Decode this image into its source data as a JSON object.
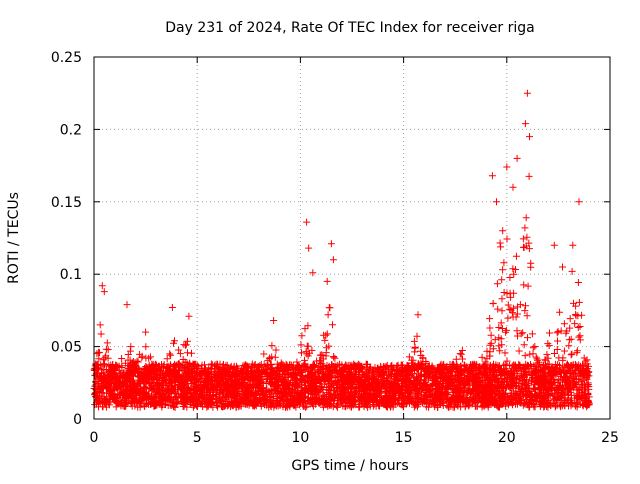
{
  "chart_data": {
    "type": "scatter",
    "title": "Day 231 of 2024, Rate Of TEC Index for receiver riga",
    "xlabel": "GPS time / hours",
    "ylabel": "ROTI / TECUs",
    "xlim": [
      0,
      25
    ],
    "ylim": [
      0,
      0.25
    ],
    "xticks": [
      0,
      5,
      10,
      15,
      20,
      25
    ],
    "xtick_labels": [
      "0",
      "5",
      "10",
      "15",
      "20",
      "25"
    ],
    "yticks": [
      0,
      0.05,
      0.1,
      0.15,
      0.2,
      0.25
    ],
    "ytick_labels": [
      "0",
      "0.05",
      "0.1",
      "0.15",
      "0.2",
      "0.25"
    ],
    "grid": true,
    "marker": "+",
    "colors": {
      "series": "#ff0000",
      "axes": "#000000",
      "grid": "#a0a0a0"
    },
    "series": [
      {
        "name": "ROTI",
        "sample_points": {
          "x": [
            0.3,
            0.4,
            0.5,
            1.6,
            2.5,
            3.8,
            4.6,
            8.7,
            10.3,
            10.4,
            10.6,
            11.3,
            11.5,
            11.6,
            15.7,
            19.3,
            19.5,
            19.8,
            20.0,
            20.3,
            20.5,
            20.9,
            21.0,
            21.1,
            22.3,
            22.7,
            23.2,
            23.5
          ],
          "y": [
            0.065,
            0.092,
            0.088,
            0.079,
            0.06,
            0.077,
            0.071,
            0.068,
            0.136,
            0.118,
            0.101,
            0.095,
            0.121,
            0.11,
            0.072,
            0.168,
            0.15,
            0.13,
            0.174,
            0.16,
            0.18,
            0.204,
            0.225,
            0.195,
            0.12,
            0.105,
            0.12,
            0.15
          ]
        }
      }
    ]
  }
}
